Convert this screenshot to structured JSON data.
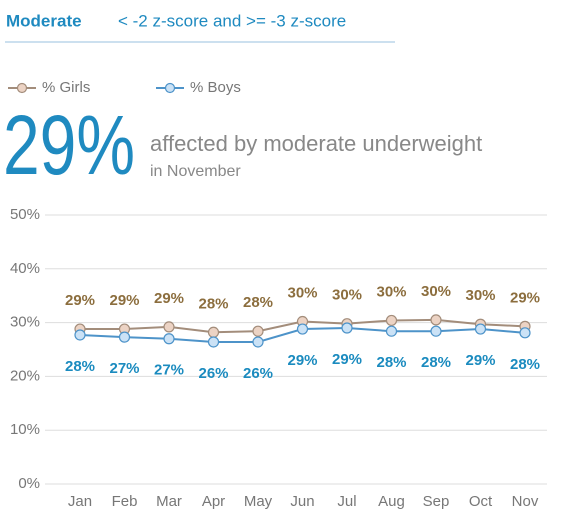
{
  "chart_data": {
    "type": "line",
    "title": "Moderate",
    "subtitle": "< -2 z-score and >= -3 z-score",
    "headline": {
      "value": "29%",
      "text": "affected by moderate underweight",
      "note": "in November"
    },
    "categories": [
      "Jan",
      "Feb",
      "Mar",
      "Apr",
      "May",
      "Jun",
      "Jul",
      "Aug",
      "Sep",
      "Oct",
      "Nov"
    ],
    "series": [
      {
        "name": "% Girls",
        "color": "#a38d7b",
        "marker_color": "#ecd3c4",
        "label_color": "#8c6e3e",
        "values": [
          28.8,
          28.8,
          29.2,
          28.2,
          28.4,
          30.2,
          29.8,
          30.4,
          30.5,
          29.7,
          29.3
        ],
        "value_labels": [
          "29%",
          "29%",
          "29%",
          "28%",
          "28%",
          "30%",
          "30%",
          "30%",
          "30%",
          "30%",
          "29%"
        ]
      },
      {
        "name": "% Boys",
        "color": "#4d93c9",
        "marker_color": "#cbe2f6",
        "label_color": "#1b8bbf",
        "values": [
          27.7,
          27.3,
          27.0,
          26.4,
          26.4,
          28.8,
          29.0,
          28.4,
          28.4,
          28.8,
          28.1
        ],
        "value_labels": [
          "28%",
          "27%",
          "27%",
          "26%",
          "26%",
          "29%",
          "29%",
          "28%",
          "28%",
          "29%",
          "28%"
        ]
      }
    ],
    "ylim": [
      0,
      50
    ],
    "yticks": [
      {
        "value": 0,
        "label": "0%"
      },
      {
        "value": 10,
        "label": "10%"
      },
      {
        "value": 20,
        "label": "20%"
      },
      {
        "value": 30,
        "label": "30%"
      },
      {
        "value": 40,
        "label": "40%"
      },
      {
        "value": 50,
        "label": "50%"
      }
    ],
    "grid": true
  }
}
